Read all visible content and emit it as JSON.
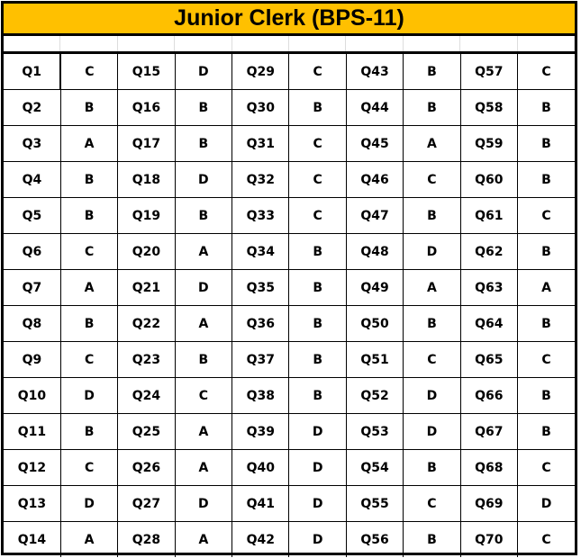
{
  "title": "Junior Clerk (BPS-11)",
  "colors": {
    "title_background": "#FFC000",
    "border": "#000000"
  },
  "answers": [
    {
      "q": "Q1",
      "a": "C"
    },
    {
      "q": "Q2",
      "a": "B"
    },
    {
      "q": "Q3",
      "a": "A"
    },
    {
      "q": "Q4",
      "a": "B"
    },
    {
      "q": "Q5",
      "a": "B"
    },
    {
      "q": "Q6",
      "a": "C"
    },
    {
      "q": "Q7",
      "a": "A"
    },
    {
      "q": "Q8",
      "a": "B"
    },
    {
      "q": "Q9",
      "a": "C"
    },
    {
      "q": "Q10",
      "a": "D"
    },
    {
      "q": "Q11",
      "a": "B"
    },
    {
      "q": "Q12",
      "a": "C"
    },
    {
      "q": "Q13",
      "a": "D"
    },
    {
      "q": "Q14",
      "a": "A"
    },
    {
      "q": "Q15",
      "a": "D"
    },
    {
      "q": "Q16",
      "a": "B"
    },
    {
      "q": "Q17",
      "a": "B"
    },
    {
      "q": "Q18",
      "a": "D"
    },
    {
      "q": "Q19",
      "a": "B"
    },
    {
      "q": "Q20",
      "a": "A"
    },
    {
      "q": "Q21",
      "a": "D"
    },
    {
      "q": "Q22",
      "a": "A"
    },
    {
      "q": "Q23",
      "a": "B"
    },
    {
      "q": "Q24",
      "a": "C"
    },
    {
      "q": "Q25",
      "a": "A"
    },
    {
      "q": "Q26",
      "a": "A"
    },
    {
      "q": "Q27",
      "a": "D"
    },
    {
      "q": "Q28",
      "a": "A"
    },
    {
      "q": "Q29",
      "a": "C"
    },
    {
      "q": "Q30",
      "a": "B"
    },
    {
      "q": "Q31",
      "a": "C"
    },
    {
      "q": "Q32",
      "a": "C"
    },
    {
      "q": "Q33",
      "a": "C"
    },
    {
      "q": "Q34",
      "a": "B"
    },
    {
      "q": "Q35",
      "a": "B"
    },
    {
      "q": "Q36",
      "a": "B"
    },
    {
      "q": "Q37",
      "a": "B"
    },
    {
      "q": "Q38",
      "a": "B"
    },
    {
      "q": "Q39",
      "a": "D"
    },
    {
      "q": "Q40",
      "a": "D"
    },
    {
      "q": "Q41",
      "a": "D"
    },
    {
      "q": "Q42",
      "a": "D"
    },
    {
      "q": "Q43",
      "a": "B"
    },
    {
      "q": "Q44",
      "a": "B"
    },
    {
      "q": "Q45",
      "a": "A"
    },
    {
      "q": "Q46",
      "a": "C"
    },
    {
      "q": "Q47",
      "a": "B"
    },
    {
      "q": "Q48",
      "a": "D"
    },
    {
      "q": "Q49",
      "a": "A"
    },
    {
      "q": "Q50",
      "a": "B"
    },
    {
      "q": "Q51",
      "a": "C"
    },
    {
      "q": "Q52",
      "a": "D"
    },
    {
      "q": "Q53",
      "a": "D"
    },
    {
      "q": "Q54",
      "a": "B"
    },
    {
      "q": "Q55",
      "a": "C"
    },
    {
      "q": "Q56",
      "a": "B"
    },
    {
      "q": "Q57",
      "a": "C"
    },
    {
      "q": "Q58",
      "a": "B"
    },
    {
      "q": "Q59",
      "a": "B"
    },
    {
      "q": "Q60",
      "a": "B"
    },
    {
      "q": "Q61",
      "a": "C"
    },
    {
      "q": "Q62",
      "a": "B"
    },
    {
      "q": "Q63",
      "a": "A"
    },
    {
      "q": "Q64",
      "a": "B"
    },
    {
      "q": "Q65",
      "a": "C"
    },
    {
      "q": "Q66",
      "a": "B"
    },
    {
      "q": "Q67",
      "a": "B"
    },
    {
      "q": "Q68",
      "a": "C"
    },
    {
      "q": "Q69",
      "a": "D"
    },
    {
      "q": "Q70",
      "a": "C"
    }
  ]
}
